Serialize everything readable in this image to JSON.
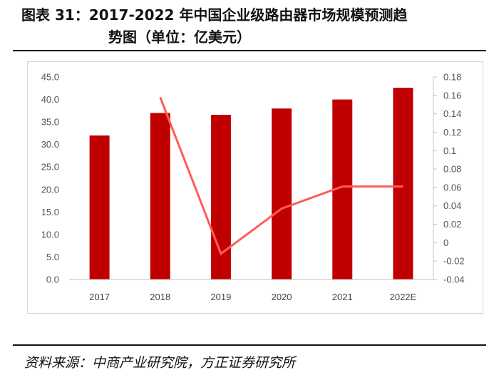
{
  "title": {
    "line1": "图表 31：2017-2022 年中国企业级路由器市场规模预测趋",
    "line2": "势图（单位：亿美元）"
  },
  "source": "资料来源：中商产业研究院，方正证券研究所",
  "chart_data": {
    "type": "bar",
    "categories": [
      "2017",
      "2018",
      "2019",
      "2020",
      "2021",
      "2022E"
    ],
    "series": [
      {
        "type": "bar",
        "axis": "left",
        "color": "#C00000",
        "values": [
          32.0,
          37.0,
          36.6,
          38.0,
          40.0,
          42.6
        ]
      },
      {
        "type": "line",
        "axis": "right",
        "color": "#FF5B5B",
        "values": [
          null,
          0.158,
          -0.012,
          0.037,
          0.061,
          0.061
        ]
      }
    ],
    "y_left": {
      "min": 0,
      "max": 45,
      "step": 5,
      "ticks": [
        "0.0",
        "5.0",
        "10.0",
        "15.0",
        "20.0",
        "25.0",
        "30.0",
        "35.0",
        "40.0",
        "45.0"
      ]
    },
    "y_right": {
      "min": -0.04,
      "max": 0.18,
      "step": 0.02,
      "ticks": [
        "-0.04",
        "-0.02",
        "0",
        "0.02",
        "0.04",
        "0.06",
        "0.08",
        "0.1",
        "0.12",
        "0.14",
        "0.16",
        "0.18"
      ]
    },
    "grid": false,
    "legend": "none"
  }
}
